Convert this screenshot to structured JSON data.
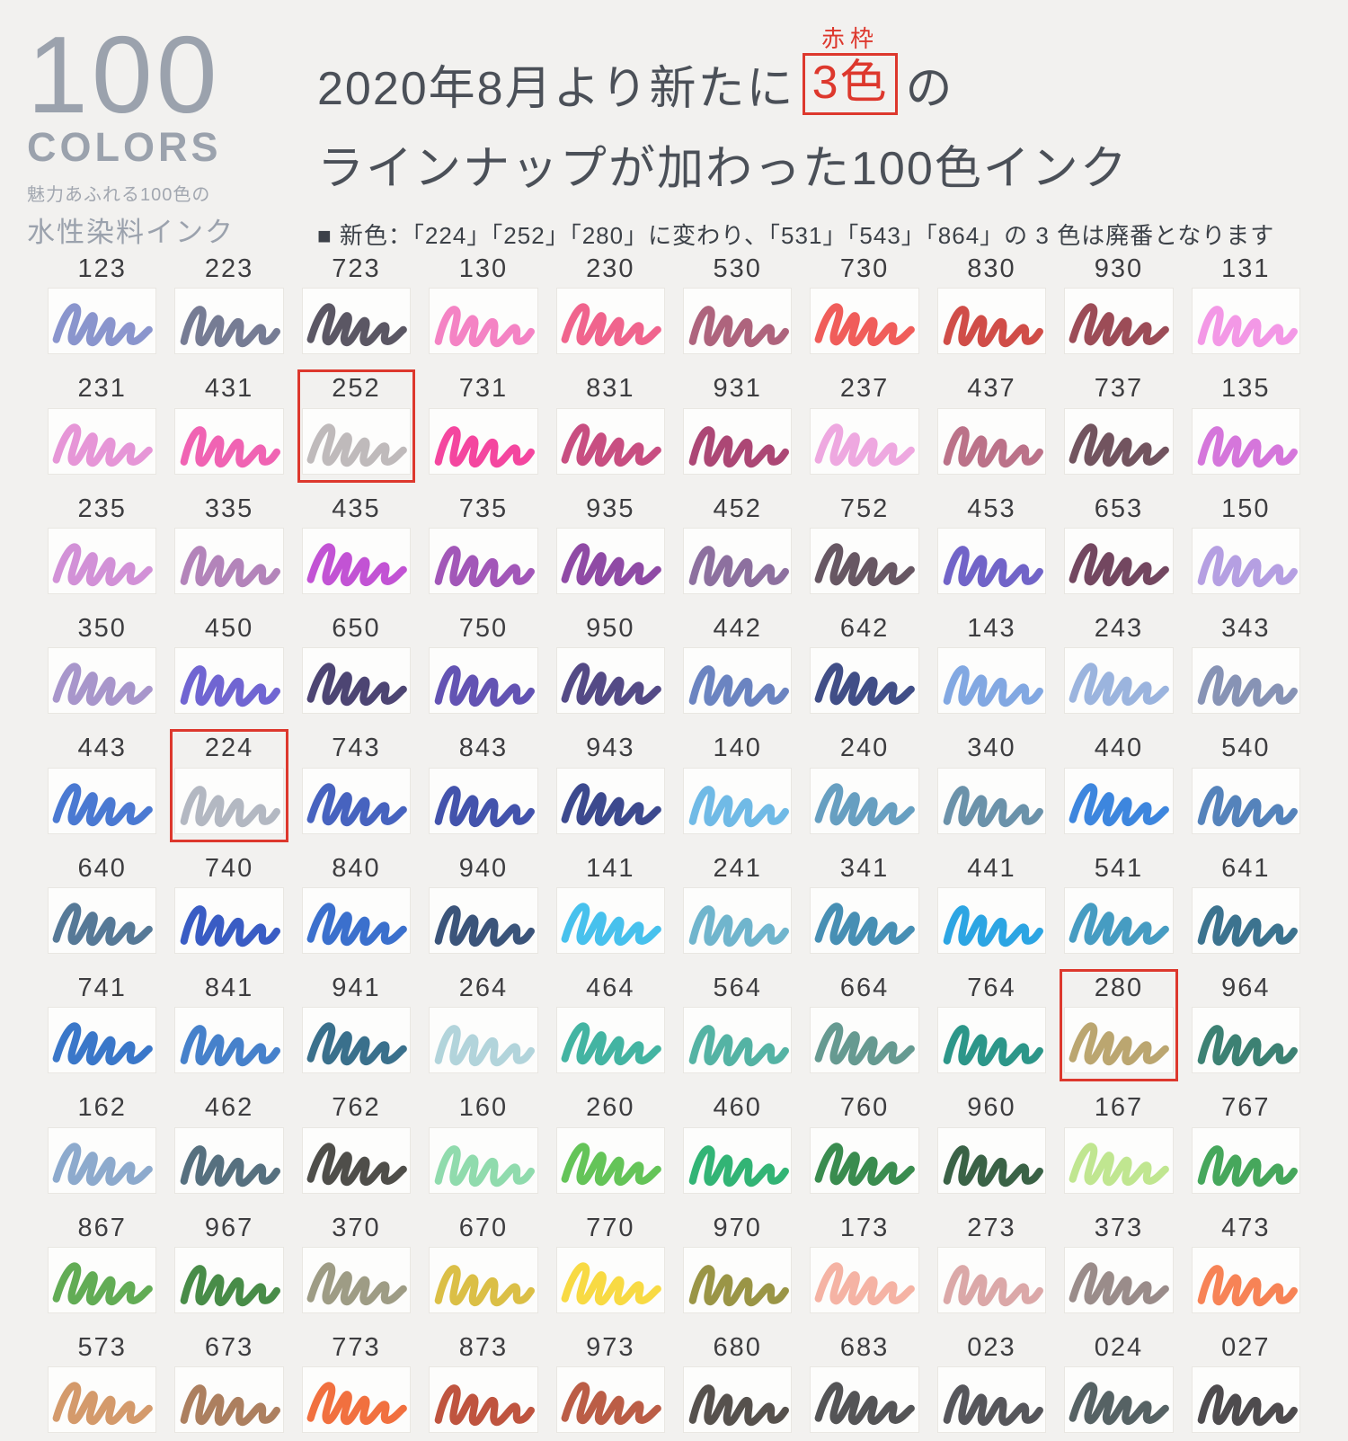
{
  "header": {
    "badge_number": "100",
    "badge_word": "COLORS",
    "badge_sub1": "魅力あふれる100色の",
    "badge_sub2": "水性染料インク",
    "red_label": "赤枠",
    "title_line1_pre": "2020年8月より新たに",
    "title_boxed": "3色",
    "title_line1_post": "の",
    "title_line2": "ラインナップが加わった100色インク",
    "note": "■ 新色：「224」「252」「280」に変わり、「531」「543」「864」の 3 色は廃番となります",
    "accent_red": "#dd382d"
  },
  "chart_data": {
    "type": "table",
    "title": "100色 水性染料インク カラーチャート",
    "columns": [
      "code",
      "color",
      "highlighted"
    ],
    "new_colors": [
      "224",
      "252",
      "280"
    ],
    "discontinued_colors": [
      "531",
      "543",
      "864"
    ],
    "rows": [
      {
        "code": "123",
        "color": "#7a86c6",
        "highlighted": false
      },
      {
        "code": "223",
        "color": "#636a85",
        "highlighted": false
      },
      {
        "code": "723",
        "color": "#44404e",
        "highlighted": false
      },
      {
        "code": "130",
        "color": "#f272bc",
        "highlighted": false
      },
      {
        "code": "230",
        "color": "#ee4f7d",
        "highlighted": false
      },
      {
        "code": "530",
        "color": "#a34f6b",
        "highlighted": false
      },
      {
        "code": "730",
        "color": "#ee4743",
        "highlighted": false
      },
      {
        "code": "830",
        "color": "#c9342f",
        "highlighted": false
      },
      {
        "code": "930",
        "color": "#8e3340",
        "highlighted": false
      },
      {
        "code": "131",
        "color": "#f18ae2",
        "highlighted": false
      },
      {
        "code": "231",
        "color": "#e287d1",
        "highlighted": false
      },
      {
        "code": "431",
        "color": "#ee4da8",
        "highlighted": false
      },
      {
        "code": "252",
        "color": "#b6b0b2",
        "highlighted": true
      },
      {
        "code": "731",
        "color": "#f22c92",
        "highlighted": false
      },
      {
        "code": "831",
        "color": "#c03570",
        "highlighted": false
      },
      {
        "code": "931",
        "color": "#a12e62",
        "highlighted": false
      },
      {
        "code": "237",
        "color": "#ec9cdc",
        "highlighted": false
      },
      {
        "code": "437",
        "color": "#b25f79",
        "highlighted": false
      },
      {
        "code": "737",
        "color": "#5e3c49",
        "highlighted": false
      },
      {
        "code": "135",
        "color": "#cf63d6",
        "highlighted": false
      },
      {
        "code": "235",
        "color": "#cc82d2",
        "highlighted": false
      },
      {
        "code": "335",
        "color": "#a873b0",
        "highlighted": false
      },
      {
        "code": "435",
        "color": "#ba3bce",
        "highlighted": false
      },
      {
        "code": "735",
        "color": "#9540ae",
        "highlighted": false
      },
      {
        "code": "935",
        "color": "#7f3198",
        "highlighted": false
      },
      {
        "code": "452",
        "color": "#7d5c92",
        "highlighted": false
      },
      {
        "code": "752",
        "color": "#52404d",
        "highlighted": false
      },
      {
        "code": "453",
        "color": "#5d4ec0",
        "highlighted": false
      },
      {
        "code": "653",
        "color": "#602e4a",
        "highlighted": false
      },
      {
        "code": "150",
        "color": "#ab92de",
        "highlighted": false
      },
      {
        "code": "350",
        "color": "#9c88c4",
        "highlighted": false
      },
      {
        "code": "450",
        "color": "#5c50cc",
        "highlighted": false
      },
      {
        "code": "650",
        "color": "#342b60",
        "highlighted": false
      },
      {
        "code": "750",
        "color": "#4d3ba8",
        "highlighted": false
      },
      {
        "code": "950",
        "color": "#3c3175",
        "highlighted": false
      },
      {
        "code": "442",
        "color": "#5673b8",
        "highlighted": false
      },
      {
        "code": "642",
        "color": "#273576",
        "highlighted": false
      },
      {
        "code": "143",
        "color": "#719cde",
        "highlighted": false
      },
      {
        "code": "243",
        "color": "#8daad9",
        "highlighted": false
      },
      {
        "code": "343",
        "color": "#7684ab",
        "highlighted": false
      },
      {
        "code": "443",
        "color": "#3166cc",
        "highlighted": false
      },
      {
        "code": "224",
        "color": "#a9aeba",
        "highlighted": true
      },
      {
        "code": "743",
        "color": "#2d4db6",
        "highlighted": false
      },
      {
        "code": "843",
        "color": "#293ba0",
        "highlighted": false
      },
      {
        "code": "943",
        "color": "#21307e",
        "highlighted": false
      },
      {
        "code": "140",
        "color": "#5cb0e2",
        "highlighted": false
      },
      {
        "code": "240",
        "color": "#5292b8",
        "highlighted": false
      },
      {
        "code": "340",
        "color": "#56839e",
        "highlighted": false
      },
      {
        "code": "440",
        "color": "#2275da",
        "highlighted": false
      },
      {
        "code": "540",
        "color": "#3d72b2",
        "highlighted": false
      },
      {
        "code": "640",
        "color": "#3f6789",
        "highlighted": false
      },
      {
        "code": "740",
        "color": "#1e46bc",
        "highlighted": false
      },
      {
        "code": "840",
        "color": "#205cc6",
        "highlighted": false
      },
      {
        "code": "940",
        "color": "#203c68",
        "highlighted": false
      },
      {
        "code": "141",
        "color": "#2eb8ea",
        "highlighted": false
      },
      {
        "code": "241",
        "color": "#5cabc6",
        "highlighted": false
      },
      {
        "code": "341",
        "color": "#2e80aa",
        "highlighted": false
      },
      {
        "code": "441",
        "color": "#0f98df",
        "highlighted": false
      },
      {
        "code": "541",
        "color": "#2c8eba",
        "highlighted": false
      },
      {
        "code": "641",
        "color": "#216080",
        "highlighted": false
      },
      {
        "code": "741",
        "color": "#1f64c2",
        "highlighted": false
      },
      {
        "code": "841",
        "color": "#2c70c4",
        "highlighted": false
      },
      {
        "code": "941",
        "color": "#1f5c7c",
        "highlighted": false
      },
      {
        "code": "264",
        "color": "#a7ced6",
        "highlighted": false
      },
      {
        "code": "464",
        "color": "#29aa95",
        "highlighted": false
      },
      {
        "code": "564",
        "color": "#3ca897",
        "highlighted": false
      },
      {
        "code": "664",
        "color": "#518c82",
        "highlighted": false
      },
      {
        "code": "764",
        "color": "#0f8779",
        "highlighted": false
      },
      {
        "code": "280",
        "color": "#b29a5c",
        "highlighted": true
      },
      {
        "code": "964",
        "color": "#216f60",
        "highlighted": false
      },
      {
        "code": "162",
        "color": "#7d9ec6",
        "highlighted": false
      },
      {
        "code": "462",
        "color": "#3f5c6d",
        "highlighted": false
      },
      {
        "code": "762",
        "color": "#373631",
        "highlighted": false
      },
      {
        "code": "160",
        "color": "#81d6a2",
        "highlighted": false
      },
      {
        "code": "260",
        "color": "#4ebc41",
        "highlighted": false
      },
      {
        "code": "460",
        "color": "#16aa62",
        "highlighted": false
      },
      {
        "code": "760",
        "color": "#1f7c37",
        "highlighted": false
      },
      {
        "code": "960",
        "color": "#1f4c2c",
        "highlighted": false
      },
      {
        "code": "167",
        "color": "#b7e281",
        "highlighted": false
      },
      {
        "code": "767",
        "color": "#2c9b46",
        "highlighted": false
      },
      {
        "code": "867",
        "color": "#4ca03e",
        "highlighted": false
      },
      {
        "code": "967",
        "color": "#2f7c2f",
        "highlighted": false
      },
      {
        "code": "370",
        "color": "#918e74",
        "highlighted": false
      },
      {
        "code": "670",
        "color": "#d6b62c",
        "highlighted": false
      },
      {
        "code": "770",
        "color": "#f7d529",
        "highlighted": false
      },
      {
        "code": "970",
        "color": "#8c862c",
        "highlighted": false
      },
      {
        "code": "173",
        "color": "#f4a997",
        "highlighted": false
      },
      {
        "code": "273",
        "color": "#d69c9c",
        "highlighted": false
      },
      {
        "code": "373",
        "color": "#8c7c7a",
        "highlighted": false
      },
      {
        "code": "473",
        "color": "#f6723f",
        "highlighted": false
      },
      {
        "code": "573",
        "color": "#ce8c57",
        "highlighted": false
      },
      {
        "code": "673",
        "color": "#a06d49",
        "highlighted": false
      },
      {
        "code": "773",
        "color": "#ef5c24",
        "highlighted": false
      },
      {
        "code": "873",
        "color": "#b63c24",
        "highlighted": false
      },
      {
        "code": "973",
        "color": "#b2472c",
        "highlighted": false
      },
      {
        "code": "680",
        "color": "#3f3934",
        "highlighted": false
      },
      {
        "code": "683",
        "color": "#3c3c3f",
        "highlighted": false
      },
      {
        "code": "023",
        "color": "#3f3f44",
        "highlighted": false
      },
      {
        "code": "024",
        "color": "#3f4c4f",
        "highlighted": false
      },
      {
        "code": "027",
        "color": "#353235",
        "highlighted": false
      }
    ]
  }
}
